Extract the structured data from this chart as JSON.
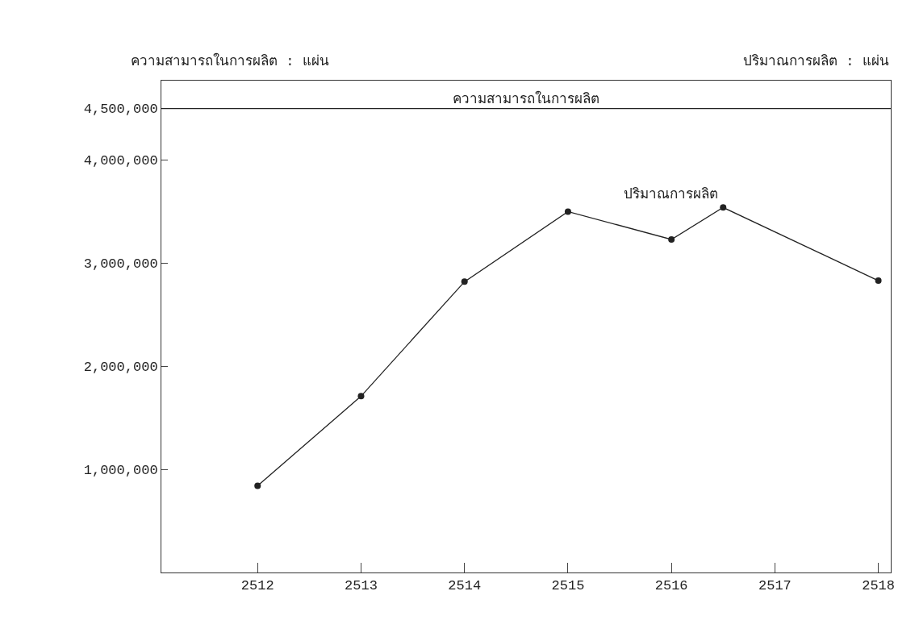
{
  "chart_data": {
    "type": "line",
    "ylabel": "ความสามารถในการผลิต : แผ่น",
    "annotations": [
      "ปริมาณการผลิต : แผ่น"
    ],
    "x": [
      2512,
      2513,
      2514,
      2515,
      2516,
      2516.5,
      2518
    ],
    "series": [
      {
        "name": "ปริมาณการผลิต",
        "color": "#222222",
        "values": [
          840000,
          1710000,
          2820000,
          3500000,
          3230000,
          3540000,
          2830000
        ]
      }
    ],
    "xlim": [
      2511.07,
      2518.12
    ],
    "xticks": [
      2512,
      2513,
      2514,
      2515,
      2516,
      2517,
      2518
    ],
    "ylim": [
      0,
      4770000
    ],
    "yticks": [
      {
        "value": 1000000,
        "label": "1,000,000"
      },
      {
        "value": 2000000,
        "label": "2,000,000"
      },
      {
        "value": 3000000,
        "label": "3,000,000"
      },
      {
        "value": 4000000,
        "label": "4,000,000"
      },
      {
        "value": 4500000,
        "label": "4,500,000"
      }
    ],
    "ref_lines": [
      {
        "axis": "y",
        "value": 4500000,
        "label": "ความสามารถในการผลิต",
        "color": "#222222",
        "line_style": "solid"
      }
    ],
    "marker": "circle",
    "line_style": "solid"
  }
}
